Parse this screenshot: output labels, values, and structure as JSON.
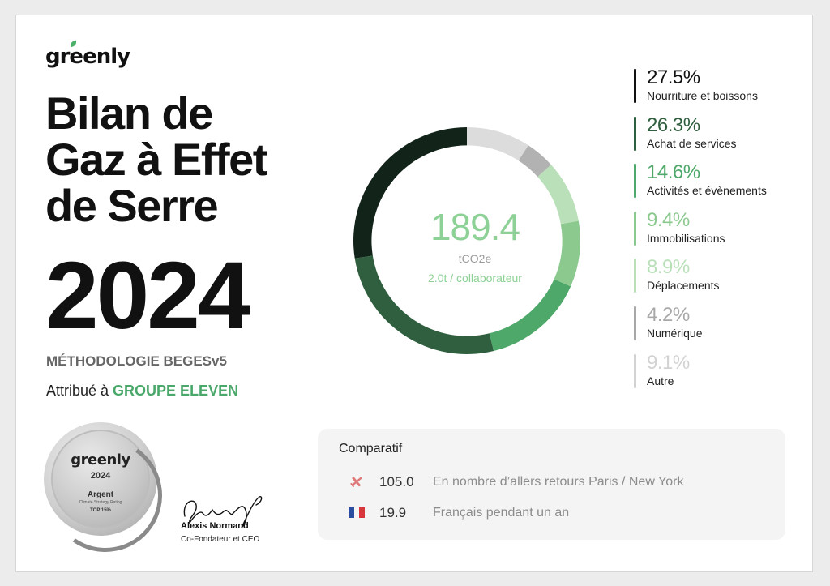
{
  "brand": {
    "logo_text": "greenly"
  },
  "title": {
    "line1": "Bilan de",
    "line2": "Gaz à Effet",
    "line3": "de Serre",
    "year": "2024"
  },
  "methodology": "MÉTHODOLOGIE BEGESv5",
  "attribution": {
    "prefix": "Attribué à ",
    "company": "GROUPE ELEVEN"
  },
  "medal": {
    "logo_text": "greenly",
    "year": "2024",
    "rank": "Argent",
    "subtitle": "Climate Strategy Rating",
    "badge": "TOP 15%"
  },
  "signatory": {
    "name": "Alexis Normand",
    "role": "Co-Fondateur et CEO"
  },
  "donut_center": {
    "value": "189.4",
    "unit": "tCO2e",
    "per_employee": "2.0t / collaborateur"
  },
  "chart_data": {
    "type": "pie",
    "categories": [
      "Nourriture et boissons",
      "Achat de services",
      "Activités et évènements",
      "Immobilisations",
      "Déplacements",
      "Numérique",
      "Autre"
    ],
    "values": [
      27.5,
      26.3,
      14.6,
      9.4,
      8.9,
      4.2,
      9.1
    ],
    "labels": [
      "27.5%",
      "26.3%",
      "14.6%",
      "9.4%",
      "8.9%",
      "4.2%",
      "9.1%"
    ],
    "colors": [
      "#12231a",
      "#2f5f3f",
      "#4ea86a",
      "#8cc98f",
      "#b9e0b8",
      "#b2b2b2",
      "#dcdcdc"
    ],
    "text_colors": [
      "#111111",
      "#2f5f3f",
      "#4ea86a",
      "#8cc98f",
      "#b9e0b8",
      "#a8a8a8",
      "#d2d2d2"
    ],
    "inner_radius_ratio": 0.84,
    "legend_position": "right"
  },
  "comparatif": {
    "title": "Comparatif",
    "rows": [
      {
        "icon": "airplane-icon",
        "value": "105.0",
        "label": "En nombre d’allers retours Paris / New York"
      },
      {
        "icon": "french-flag-icon",
        "value": "19.9",
        "label": "Français pendant un an"
      }
    ]
  }
}
